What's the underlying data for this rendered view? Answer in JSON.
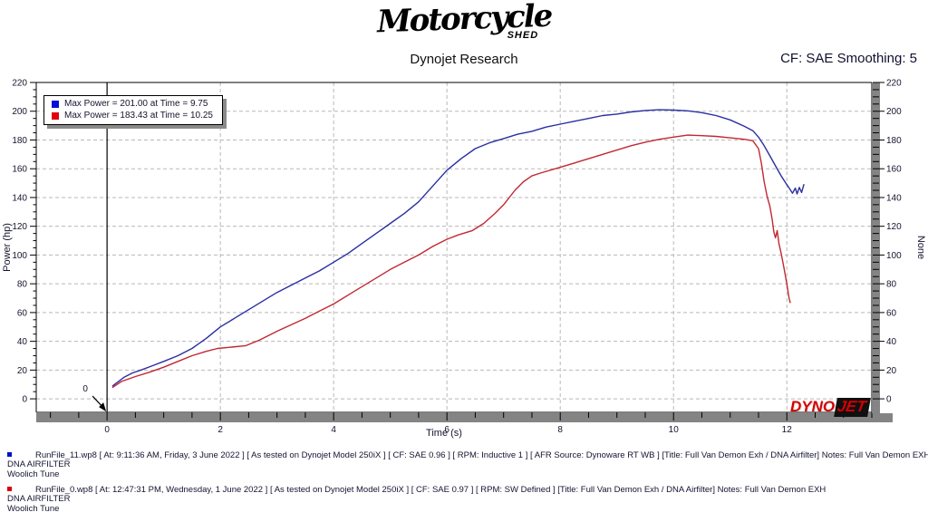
{
  "header": {
    "logo_script": "Motorcycle",
    "logo_sub": "SHED",
    "subtitle": "Dynojet Research",
    "smoothing_label": "CF: SAE Smoothing: 5"
  },
  "branding": {
    "dyno": "DYNO",
    "jet": "JET"
  },
  "chart_data": {
    "type": "line",
    "xlabel": "Time (s)",
    "ylabel_left": "Power (hp)",
    "ylabel_right": "None",
    "x_range": [
      -1.25,
      13.5
    ],
    "y_range": [
      -9.4,
      220
    ],
    "x_ticks": [
      0,
      2,
      4,
      6,
      8,
      10,
      12
    ],
    "x_minor_step": 0.5,
    "y_ticks": [
      0,
      20,
      40,
      60,
      80,
      100,
      120,
      140,
      160,
      180,
      200,
      220
    ],
    "y_minor_step": 5,
    "grid": "dashed",
    "grid_color": "#b8b8b8",
    "shadow_color": "#848484",
    "zero_line_time": 0,
    "annotation": {
      "label": "0",
      "points_to": "origin"
    },
    "legend": [
      {
        "color": "#0010d8",
        "label": "Max Power = 201.00 at Time = 9.75"
      },
      {
        "color": "#e00010",
        "label": "Max Power = 183.43 at Time = 10.25"
      }
    ],
    "series": [
      {
        "name": "RunFile_11.wp8",
        "color": "#2a2ea2",
        "max_power": 201.0,
        "max_power_time": 9.75,
        "points": [
          [
            0.1,
            9
          ],
          [
            0.2,
            12
          ],
          [
            0.3,
            15
          ],
          [
            0.45,
            18
          ],
          [
            0.6,
            20
          ],
          [
            0.8,
            23
          ],
          [
            1.0,
            26
          ],
          [
            1.25,
            30
          ],
          [
            1.5,
            35
          ],
          [
            1.75,
            42
          ],
          [
            2.0,
            50
          ],
          [
            2.25,
            56
          ],
          [
            2.5,
            62
          ],
          [
            2.75,
            68
          ],
          [
            3.0,
            74
          ],
          [
            3.25,
            79
          ],
          [
            3.5,
            84
          ],
          [
            3.75,
            89
          ],
          [
            4.0,
            95
          ],
          [
            4.25,
            101
          ],
          [
            4.5,
            108
          ],
          [
            4.75,
            115
          ],
          [
            5.0,
            122
          ],
          [
            5.25,
            129
          ],
          [
            5.5,
            137
          ],
          [
            5.75,
            148
          ],
          [
            6.0,
            159
          ],
          [
            6.25,
            167
          ],
          [
            6.5,
            174
          ],
          [
            6.75,
            178
          ],
          [
            7.0,
            181
          ],
          [
            7.25,
            184
          ],
          [
            7.5,
            186
          ],
          [
            7.75,
            189
          ],
          [
            8.0,
            191
          ],
          [
            8.25,
            193
          ],
          [
            8.5,
            195
          ],
          [
            8.75,
            197
          ],
          [
            9.0,
            198
          ],
          [
            9.25,
            199.5
          ],
          [
            9.5,
            200.5
          ],
          [
            9.75,
            201
          ],
          [
            10.0,
            200.8
          ],
          [
            10.25,
            200.3
          ],
          [
            10.5,
            199
          ],
          [
            10.75,
            197
          ],
          [
            11.0,
            194
          ],
          [
            11.25,
            189.5
          ],
          [
            11.4,
            186.5
          ],
          [
            11.5,
            182
          ],
          [
            11.6,
            176
          ],
          [
            11.7,
            169
          ],
          [
            11.8,
            162
          ],
          [
            11.9,
            155
          ],
          [
            12.0,
            149
          ],
          [
            12.05,
            146
          ],
          [
            12.1,
            143
          ],
          [
            12.15,
            146.5
          ],
          [
            12.18,
            142.5
          ],
          [
            12.22,
            147
          ],
          [
            12.26,
            143.5
          ],
          [
            12.3,
            149
          ]
        ]
      },
      {
        "name": "RunFile_0.wp8",
        "color": "#c22832",
        "max_power": 183.43,
        "max_power_time": 10.25,
        "points": [
          [
            0.1,
            8
          ],
          [
            0.25,
            12
          ],
          [
            0.5,
            15.5
          ],
          [
            0.75,
            18.5
          ],
          [
            1.0,
            22
          ],
          [
            1.25,
            26
          ],
          [
            1.5,
            30
          ],
          [
            1.75,
            33
          ],
          [
            1.95,
            35
          ],
          [
            2.2,
            36
          ],
          [
            2.45,
            37
          ],
          [
            2.7,
            41
          ],
          [
            3.0,
            47
          ],
          [
            3.25,
            51.5
          ],
          [
            3.5,
            56
          ],
          [
            3.75,
            61
          ],
          [
            4.0,
            66
          ],
          [
            4.25,
            72
          ],
          [
            4.5,
            78
          ],
          [
            4.75,
            84
          ],
          [
            5.0,
            90
          ],
          [
            5.25,
            95
          ],
          [
            5.5,
            100
          ],
          [
            5.75,
            106
          ],
          [
            6.0,
            111
          ],
          [
            6.2,
            114
          ],
          [
            6.45,
            117
          ],
          [
            6.65,
            122
          ],
          [
            6.85,
            129
          ],
          [
            7.0,
            135
          ],
          [
            7.2,
            145
          ],
          [
            7.35,
            151
          ],
          [
            7.5,
            155
          ],
          [
            7.65,
            157
          ],
          [
            8.0,
            161
          ],
          [
            8.25,
            164
          ],
          [
            8.5,
            167
          ],
          [
            8.75,
            170
          ],
          [
            9.0,
            173
          ],
          [
            9.25,
            176
          ],
          [
            9.5,
            178.5
          ],
          [
            9.75,
            180.5
          ],
          [
            10.0,
            182
          ],
          [
            10.25,
            183.4
          ],
          [
            10.5,
            183
          ],
          [
            10.75,
            182.5
          ],
          [
            11.0,
            181.5
          ],
          [
            11.25,
            180.5
          ],
          [
            11.4,
            179.5
          ],
          [
            11.5,
            174
          ],
          [
            11.55,
            164
          ],
          [
            11.6,
            151
          ],
          [
            11.65,
            141
          ],
          [
            11.7,
            134
          ],
          [
            11.74,
            125
          ],
          [
            11.77,
            116
          ],
          [
            11.8,
            112
          ],
          [
            11.83,
            117
          ],
          [
            11.86,
            108
          ],
          [
            11.9,
            101
          ],
          [
            11.95,
            91
          ],
          [
            12.0,
            80
          ],
          [
            12.04,
            70
          ],
          [
            12.06,
            67
          ]
        ]
      }
    ]
  },
  "footer": {
    "runs": [
      {
        "bullet_color": "#0010c8",
        "line": "RunFile_11.wp8 [ At: 9:11:36 AM, Friday, 3 June 2022 ] [ As tested on Dynojet Model 250iX ] [ CF: SAE 0.96 ] [ RPM: Inductive 1 ] [ AFR Source: Dynoware RT WB ] [Title: Full Van Demon Exh / DNA Airfilter]  Notes: Full Van Demon EXH",
        "sublines": [
          "DNA AIRFILTER",
          "Woolich Tune"
        ]
      },
      {
        "bullet_color": "#d80010",
        "line": "RunFile_0.wp8 [ At: 12:47:31 PM, Wednesday, 1 June 2022 ] [ As tested on Dynojet Model 250iX ] [ CF: SAE 0.97 ] [ RPM: SW Defined ] [Title: Full Van Demon Exh / DNA Airfilter]  Notes: Full Van Demon EXH",
        "sublines": [
          "DNA AIRFILTER",
          "Woolich Tune"
        ]
      }
    ]
  }
}
